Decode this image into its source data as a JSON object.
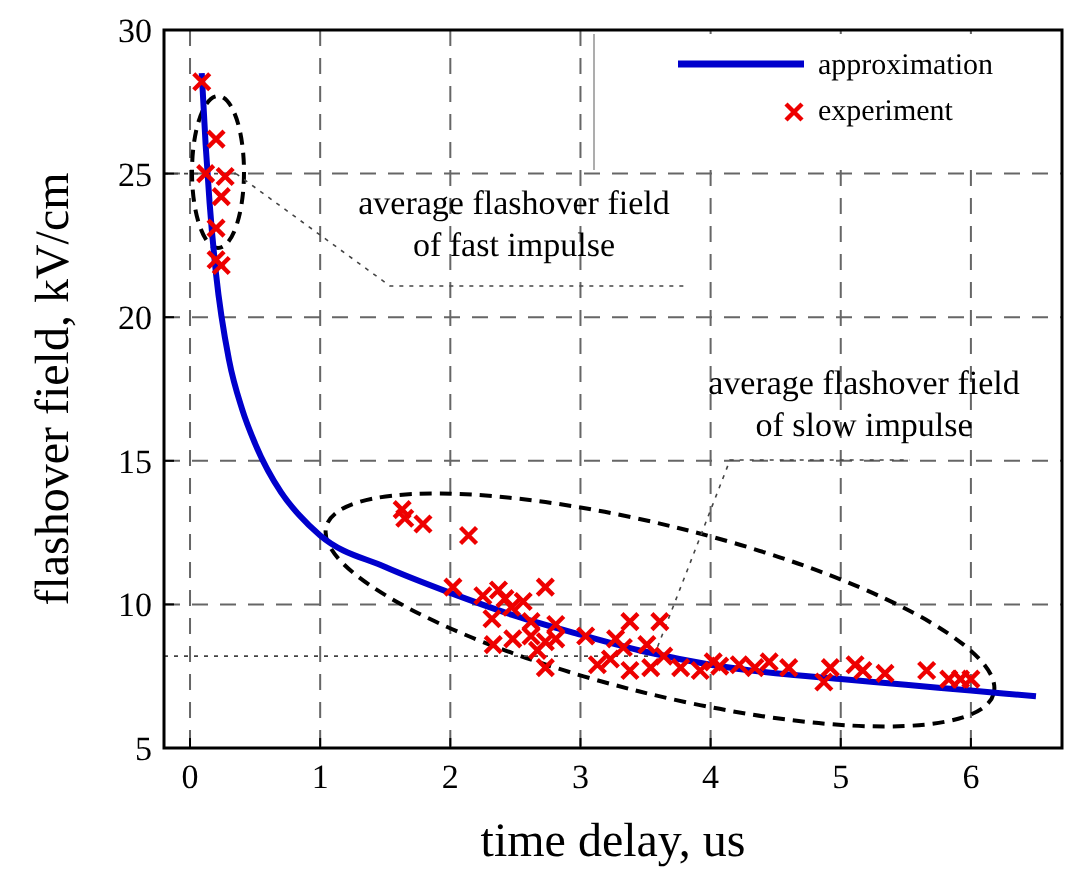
{
  "chart_data": {
    "type": "scatter",
    "xlabel": "time delay, us",
    "ylabel": "flashover field, kV/cm",
    "xlim": [
      -0.2,
      6.7
    ],
    "ylim": [
      5,
      30
    ],
    "xticks": [
      0,
      1,
      2,
      3,
      4,
      5,
      6
    ],
    "yticks": [
      5,
      10,
      15,
      20,
      25,
      30
    ],
    "grid": true,
    "legend": "top right",
    "series": [
      {
        "name": "approximation",
        "type": "line",
        "color": "#0000cc",
        "marker": "none",
        "line_style": "solid",
        "x": [
          0.09,
          0.12,
          0.15,
          0.2,
          0.3,
          0.4,
          0.5,
          0.7,
          0.84,
          1,
          1.5,
          2,
          2.5,
          3,
          3.5,
          4,
          4.5,
          5,
          5.5,
          6,
          6.5
        ],
        "values": [
          28.5,
          26,
          24,
          21.5,
          18.5,
          16.8,
          15.6,
          13.9,
          13.1,
          12.4,
          11.3,
          10.4,
          9.6,
          8.95,
          8.35,
          7.9,
          7.6,
          7.4,
          7.2,
          7,
          6.8
        ]
      },
      {
        "name": "experiment",
        "color": "#ee0000",
        "marker": "cross",
        "x": [
          0.09,
          0.2,
          0.12,
          0.27,
          0.24,
          0.2,
          0.2,
          0.24,
          1.63,
          1.65,
          1.79,
          2.14,
          2.02,
          2.25,
          2.37,
          2.42,
          2.47,
          2.56,
          2.73,
          2.32,
          2.62,
          2.81,
          2.33,
          2.48,
          2.62,
          2.67,
          2.73,
          2.81,
          2.73,
          3.04,
          3.13,
          3.27,
          3.33,
          3.23,
          3.38,
          3.61,
          3.51,
          3.64,
          3.38,
          3.54,
          3.77,
          3.92,
          4.02,
          4.07,
          4.22,
          4.34,
          4.45,
          4.6,
          4.87,
          4.92,
          5.11,
          5.17,
          5.34,
          5.66,
          5.83,
          5.92,
          6.0
        ],
        "values": [
          28.2,
          26.2,
          25,
          24.9,
          24.2,
          23.1,
          22,
          21.8,
          13.3,
          13,
          12.8,
          12.4,
          10.6,
          10.3,
          10.5,
          10.2,
          9.9,
          10.1,
          10.6,
          9.5,
          9.4,
          9.3,
          8.6,
          8.8,
          8.9,
          8.4,
          8.7,
          8.8,
          7.8,
          8.9,
          7.9,
          8.8,
          8.5,
          8.1,
          9.4,
          9.4,
          8.6,
          8.2,
          7.7,
          7.8,
          7.8,
          7.7,
          8,
          7.85,
          7.9,
          7.8,
          8,
          7.8,
          7.3,
          7.8,
          7.9,
          7.7,
          7.6,
          7.7,
          7.4,
          7.4,
          7.4
        ]
      }
    ],
    "ref_lines": [
      {
        "axis": "y",
        "value": 25,
        "label": "average flashover field\nof fast impulse",
        "line_style": "dotted"
      },
      {
        "axis": "y",
        "value": 8.2,
        "label": "average flashover field\nof slow impulse",
        "line_style": "dotted"
      }
    ]
  }
}
